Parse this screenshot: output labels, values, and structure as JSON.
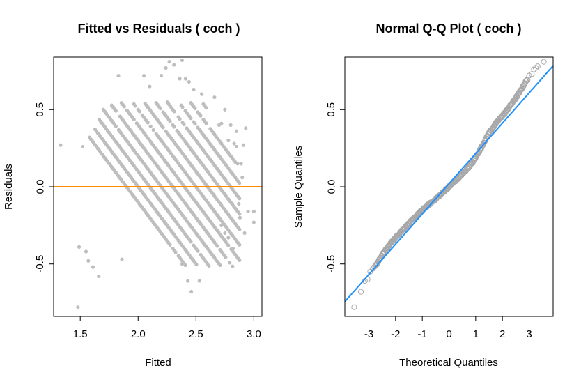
{
  "chart_data": [
    {
      "type": "scatter",
      "title": "Fitted vs Residuals ( coch )",
      "xlabel": "Fitted",
      "ylabel": "Residuals",
      "xlim": [
        1.27,
        3.07
      ],
      "ylim": [
        -0.84,
        0.84
      ],
      "x_ticks": [
        1.5,
        2.0,
        2.5,
        3.0
      ],
      "x_tick_labels": [
        "1.5",
        "2.0",
        "2.5",
        "3.0"
      ],
      "y_ticks": [
        -0.5,
        0.0,
        0.5
      ],
      "y_tick_labels": [
        "-0.5",
        "0.0",
        "0.5"
      ],
      "point_color": "#bebebe",
      "reference_line": {
        "y": 0,
        "color": "#ff8c00"
      },
      "grid": false,
      "band": {
        "slope": -1,
        "spacing": 0.1,
        "pattern_x_min": 1.45,
        "pattern_x_max": 2.72,
        "pattern_residual_min": -0.5,
        "pattern_residual_max": 0.6
      },
      "outliers": [
        {
          "x": 1.33,
          "y": 0.27
        },
        {
          "x": 1.48,
          "y": -0.78
        },
        {
          "x": 1.49,
          "y": -0.39
        },
        {
          "x": 1.52,
          "y": 0.26
        },
        {
          "x": 1.55,
          "y": -0.42
        },
        {
          "x": 1.57,
          "y": -0.48
        },
        {
          "x": 1.61,
          "y": -0.52
        },
        {
          "x": 1.66,
          "y": -0.58
        },
        {
          "x": 1.83,
          "y": 0.72
        },
        {
          "x": 1.86,
          "y": -0.47
        },
        {
          "x": 2.05,
          "y": 0.72
        },
        {
          "x": 2.1,
          "y": 0.65
        },
        {
          "x": 2.2,
          "y": 0.72
        },
        {
          "x": 2.24,
          "y": 0.77
        },
        {
          "x": 2.27,
          "y": 0.81
        },
        {
          "x": 2.31,
          "y": 0.79
        },
        {
          "x": 2.36,
          "y": 0.7
        },
        {
          "x": 2.38,
          "y": 0.82
        },
        {
          "x": 2.41,
          "y": 0.7
        },
        {
          "x": 2.44,
          "y": 0.68
        },
        {
          "x": 2.48,
          "y": 0.63
        },
        {
          "x": 2.55,
          "y": 0.6
        },
        {
          "x": 2.38,
          "y": -0.5
        },
        {
          "x": 2.43,
          "y": -0.61
        },
        {
          "x": 2.46,
          "y": -0.68
        },
        {
          "x": 2.53,
          "y": -0.61
        },
        {
          "x": 2.7,
          "y": 0.4
        },
        {
          "x": 2.72,
          "y": 0.41
        },
        {
          "x": 2.78,
          "y": 0.3
        },
        {
          "x": 2.8,
          "y": 0.4
        },
        {
          "x": 2.83,
          "y": 0.28
        },
        {
          "x": 2.85,
          "y": 0.36
        },
        {
          "x": 2.85,
          "y": 0.26
        },
        {
          "x": 2.86,
          "y": 0.15
        },
        {
          "x": 2.89,
          "y": 0.15
        },
        {
          "x": 2.9,
          "y": 0.06
        },
        {
          "x": 2.91,
          "y": 0.27
        },
        {
          "x": 2.93,
          "y": 0.38
        },
        {
          "x": 2.7,
          "y": -0.2
        },
        {
          "x": 2.72,
          "y": -0.25
        },
        {
          "x": 2.75,
          "y": -0.3
        },
        {
          "x": 2.78,
          "y": -0.33
        },
        {
          "x": 2.82,
          "y": -0.4
        },
        {
          "x": 2.87,
          "y": -0.11
        },
        {
          "x": 2.88,
          "y": -0.2
        },
        {
          "x": 2.92,
          "y": -0.3
        },
        {
          "x": 2.95,
          "y": -0.16
        },
        {
          "x": 3.0,
          "y": -0.16
        },
        {
          "x": 3.0,
          "y": -0.23
        },
        {
          "x": 2.75,
          "y": 0.5
        },
        {
          "x": 2.66,
          "y": 0.58
        }
      ]
    },
    {
      "type": "scatter",
      "title": "Normal Q-Q Plot ( coch )",
      "xlabel": "Theoretical Quantiles",
      "ylabel": "Sample Quantiles",
      "xlim": [
        -3.9,
        3.9
      ],
      "ylim": [
        -0.84,
        0.84
      ],
      "x_ticks": [
        -3,
        -2,
        -1,
        0,
        1,
        2,
        3
      ],
      "x_tick_labels": [
        "-3",
        "-2",
        "-1",
        "0",
        "1",
        "2",
        "3"
      ],
      "y_ticks": [
        -0.5,
        0.0,
        0.5
      ],
      "y_tick_labels": [
        "-0.5",
        "0.0",
        "0.5"
      ],
      "point_color": "#a8a8a8",
      "reference_line": {
        "slope": 0.196,
        "intercept": 0.02,
        "color": "#1e90ff"
      },
      "grid": false,
      "curve": [
        {
          "x": -3.55,
          "y": -0.78
        },
        {
          "x": -3.3,
          "y": -0.67
        },
        {
          "x": -3.1,
          "y": -0.61
        },
        {
          "x": -2.9,
          "y": -0.54
        },
        {
          "x": -2.7,
          "y": -0.5
        },
        {
          "x": -2.5,
          "y": -0.44
        },
        {
          "x": -2.2,
          "y": -0.37
        },
        {
          "x": -1.8,
          "y": -0.29
        },
        {
          "x": -1.4,
          "y": -0.22
        },
        {
          "x": -1.0,
          "y": -0.15
        },
        {
          "x": -0.5,
          "y": -0.08
        },
        {
          "x": 0.0,
          "y": 0.0
        },
        {
          "x": 0.5,
          "y": 0.08
        },
        {
          "x": 0.9,
          "y": 0.16
        },
        {
          "x": 1.2,
          "y": 0.25
        },
        {
          "x": 1.5,
          "y": 0.35
        },
        {
          "x": 1.8,
          "y": 0.42
        },
        {
          "x": 2.1,
          "y": 0.48
        },
        {
          "x": 2.4,
          "y": 0.55
        },
        {
          "x": 2.6,
          "y": 0.6
        },
        {
          "x": 2.8,
          "y": 0.66
        },
        {
          "x": 2.95,
          "y": 0.7
        },
        {
          "x": 3.1,
          "y": 0.74
        },
        {
          "x": 3.3,
          "y": 0.77
        },
        {
          "x": 3.55,
          "y": 0.81
        }
      ],
      "tail_points": [
        {
          "x": -3.55,
          "y": -0.78
        },
        {
          "x": -3.3,
          "y": -0.68
        },
        {
          "x": -3.15,
          "y": -0.61
        },
        {
          "x": -3.05,
          "y": -0.6
        },
        {
          "x": -2.95,
          "y": -0.55
        },
        {
          "x": -2.85,
          "y": -0.53
        },
        {
          "x": -2.8,
          "y": -0.52
        },
        {
          "x": 3.0,
          "y": 0.72
        },
        {
          "x": 3.1,
          "y": 0.73
        },
        {
          "x": 3.18,
          "y": 0.76
        },
        {
          "x": 3.25,
          "y": 0.77
        },
        {
          "x": 3.32,
          "y": 0.78
        },
        {
          "x": 3.55,
          "y": 0.81
        }
      ]
    }
  ]
}
